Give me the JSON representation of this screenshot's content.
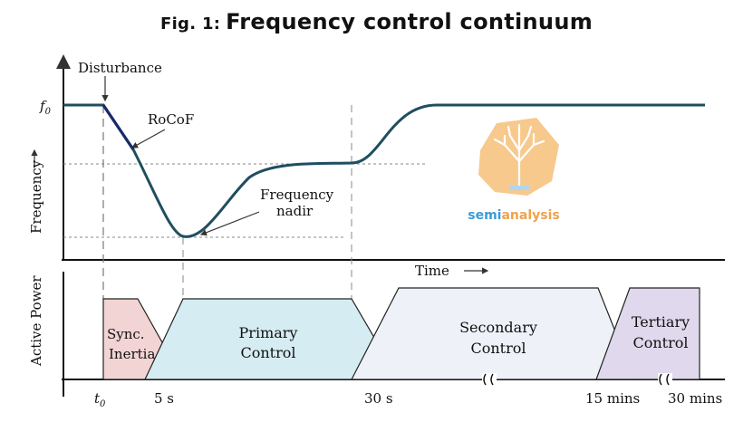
{
  "title": {
    "prefix": "Fig. 1:",
    "main": "Frequency control continuum"
  },
  "labels": {
    "disturbance": "Disturbance",
    "f0_base": "f",
    "f0_sub": "0",
    "rocof": "RoCoF",
    "frequency_axis": "Frequency",
    "freq_nadir_1": "Frequency",
    "freq_nadir_2": "nadir",
    "time": "Time",
    "active_power": "Active Power",
    "sync_1": "Sync.",
    "sync_2": "Inertia",
    "primary_1": "Primary",
    "primary_2": "Control",
    "secondary_1": "Secondary",
    "secondary_2": "Control",
    "tertiary_1": "Tertiary",
    "tertiary_2": "Control",
    "t0_base": "t",
    "t0_sub": "0",
    "tick_5s": "5 s",
    "tick_30s": "30 s",
    "tick_15min": "15 mins",
    "tick_30min": "30 mins"
  },
  "watermark": {
    "text_a": "semi",
    "text_b": "analysis",
    "icon": "tree-chip-icon"
  },
  "colors": {
    "curve": "#1f4e5f",
    "rocof_line": "#1a2a6c",
    "sync": "#f3d4d4",
    "primary": "#d6ecf3",
    "secondary": "#eef2f8",
    "tertiary": "#e0d8ec",
    "watermark_orange": "#f6c07a",
    "watermark_blue": "#3a9bd8"
  }
}
